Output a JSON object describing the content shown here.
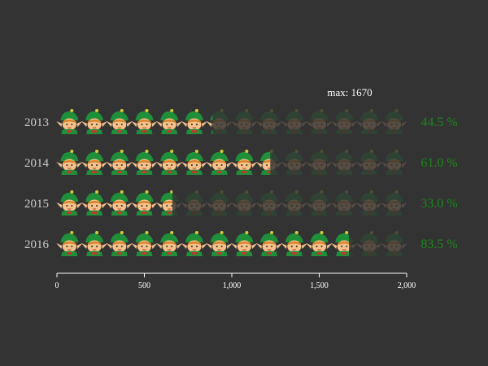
{
  "chart_data": {
    "type": "pictorial-bar",
    "icon": "elf-icon",
    "categories": [
      "2013",
      "2014",
      "2015",
      "2016"
    ],
    "values": [
      890,
      1220,
      660,
      1670
    ],
    "percent_labels": [
      "44.5 %",
      "61.0 %",
      "33.0 %",
      "83.5 %"
    ],
    "xlim": [
      0,
      2000
    ],
    "icons_per_row": 14,
    "max_label": "max: 1670",
    "x_ticks": [
      0,
      500,
      1000,
      1500,
      2000
    ],
    "x_tick_labels": [
      "0",
      "500",
      "1,000",
      "1,500",
      "2,000"
    ],
    "colors": {
      "background": "#333333",
      "hat": "#1f8f3a",
      "face": "#f6c28b",
      "hair": "#d9832b",
      "percent_text": "#1a8a1a"
    }
  }
}
